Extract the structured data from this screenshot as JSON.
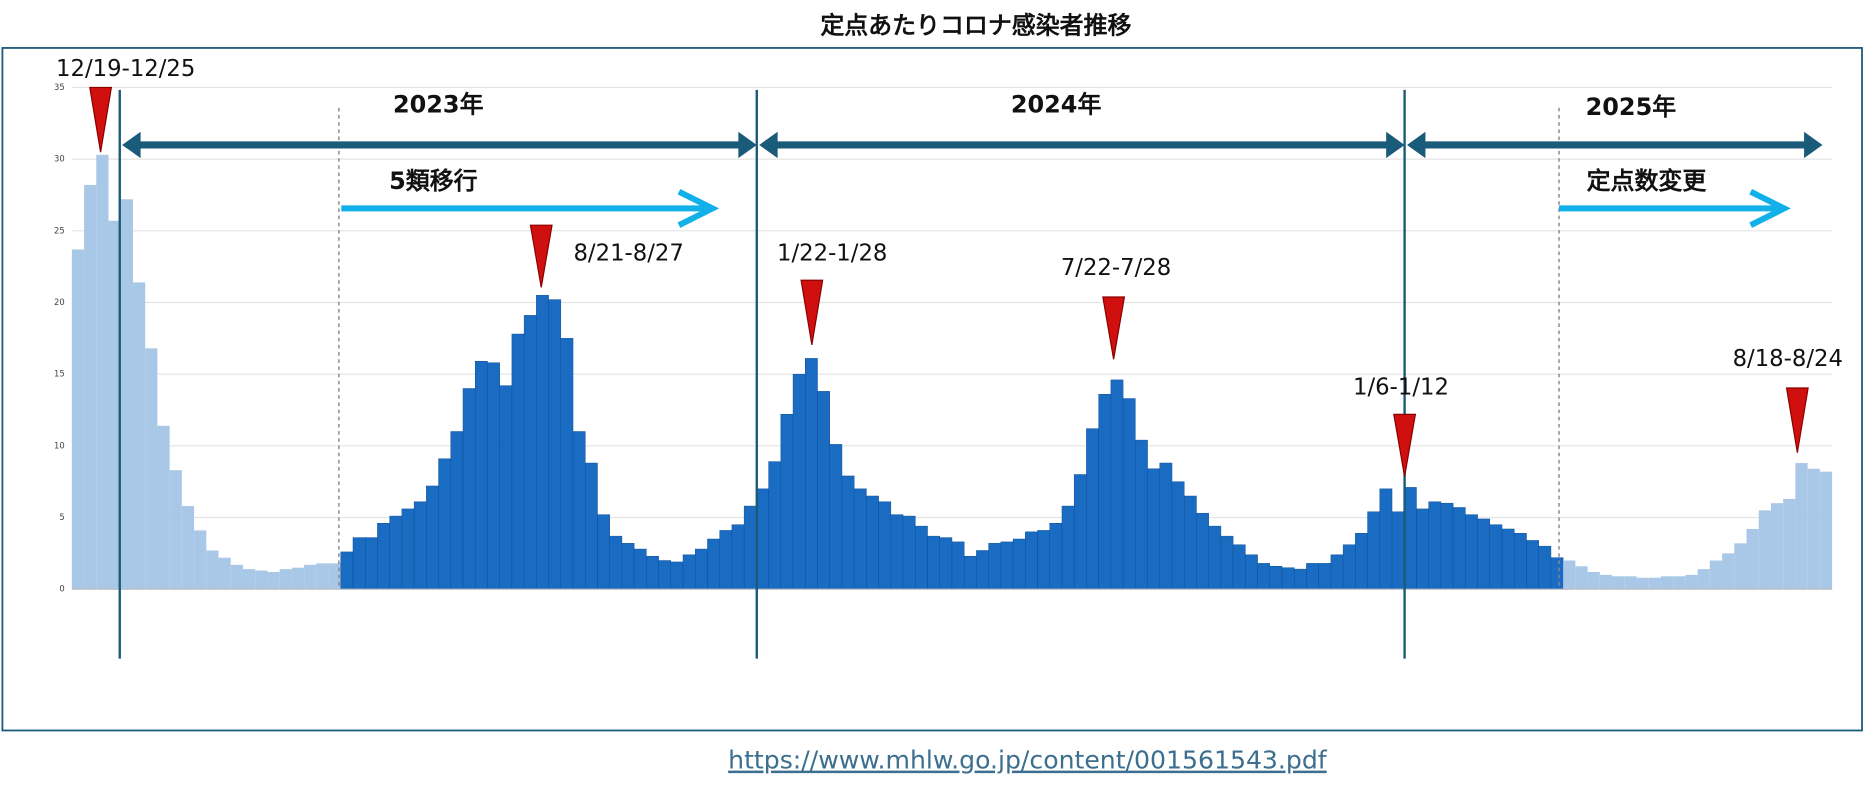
{
  "title": "定点あたりコロナ感染者推移",
  "source_url": "https://www.mhlw.go.jp/content/001561543.pdf",
  "chart_data": {
    "type": "bar",
    "segments": [
      {
        "color": "#a9c8e8",
        "values": [
          23.7,
          28.2,
          30.3,
          25.7,
          27.2,
          21.4,
          16.8,
          11.4,
          8.3,
          5.8,
          4.1,
          2.7,
          2.2,
          1.7,
          1.4,
          1.3,
          1.2,
          1.4,
          1.5,
          1.7,
          1.8,
          1.8
        ]
      },
      {
        "color": "#1a6cc2",
        "values": [
          2.6,
          3.6,
          3.6,
          4.6,
          5.1,
          5.6,
          6.1,
          7.2,
          9.1,
          11.0,
          14.0,
          15.9,
          15.8,
          14.2,
          17.8,
          19.1,
          20.5,
          20.2,
          17.5,
          11.0,
          8.8,
          5.2,
          3.7,
          3.2,
          2.8,
          2.3,
          2.0,
          1.9,
          2.4,
          2.8,
          3.5,
          4.1,
          4.5,
          5.8,
          7.0,
          8.9,
          12.2,
          15.0,
          16.1,
          13.8,
          10.1,
          7.9,
          7.0,
          6.5,
          6.1,
          5.2,
          5.1,
          4.4,
          3.7,
          3.6,
          3.3,
          2.3,
          2.7,
          3.2,
          3.3,
          3.5,
          4.0,
          4.1,
          4.6,
          5.8,
          8.0,
          11.2,
          13.6,
          14.6,
          13.3,
          10.4,
          8.4,
          8.8,
          7.5,
          6.5,
          5.3,
          4.4,
          3.7,
          3.1,
          2.4,
          1.8,
          1.6,
          1.5,
          1.4,
          1.8,
          1.8,
          2.4,
          3.1,
          3.9,
          5.4,
          7.0,
          5.4,
          7.1,
          5.6,
          6.1,
          6.0,
          5.7,
          5.2,
          4.9,
          4.5,
          4.2,
          3.9,
          3.4,
          3.0,
          2.2
        ]
      },
      {
        "color": "#a9c8e8",
        "values": [
          2.0,
          1.6,
          1.2,
          1.0,
          0.9,
          0.9,
          0.8,
          0.8,
          0.9,
          0.9,
          1.0,
          1.4,
          2.0,
          2.5,
          3.2,
          4.2,
          5.5,
          6.0,
          6.3,
          8.8,
          8.4,
          8.2
        ]
      }
    ],
    "ylim": [
      0,
      35
    ],
    "yticks": [
      0,
      5,
      10,
      15,
      20,
      25,
      30,
      35
    ],
    "grid": true,
    "annotations": {
      "years": [
        "2023年",
        "2024年",
        "2025年"
      ],
      "phases": [
        "5類移行",
        "定点数変更"
      ],
      "peaks": [
        "12/19-12/25",
        "8/21-8/27",
        "1/22-1/28",
        "7/22-7/28",
        "1/6-1/12",
        "8/18-8/24"
      ]
    }
  }
}
